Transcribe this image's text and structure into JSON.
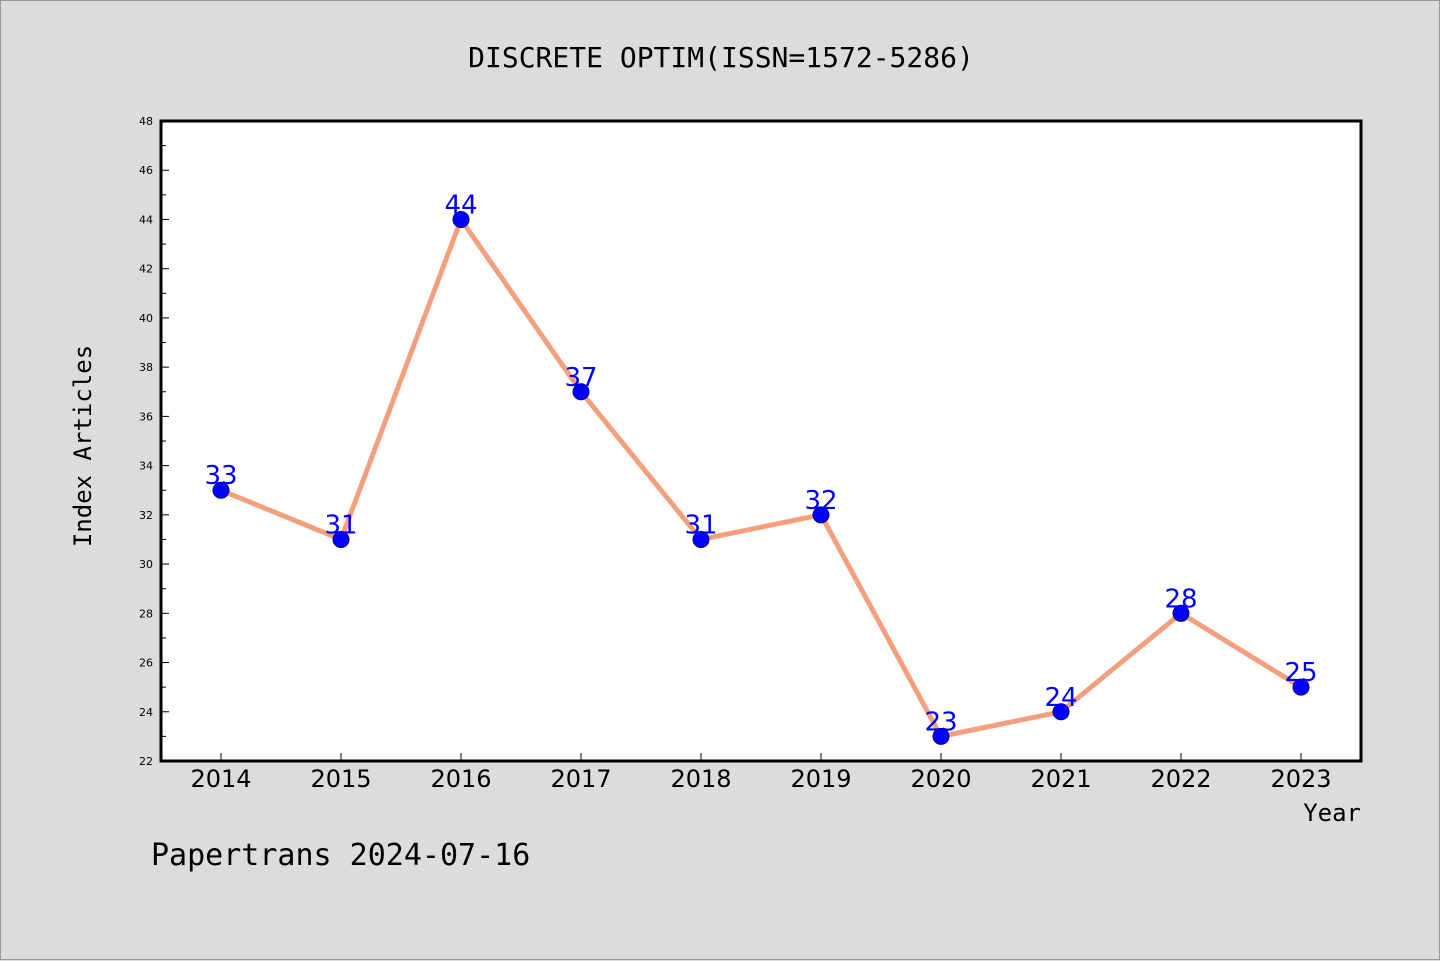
{
  "chart_data": {
    "type": "line",
    "title": "DISCRETE OPTIM(ISSN=1572-5286)",
    "xlabel": "Year",
    "ylabel": "Index Articles",
    "categories": [
      "2014",
      "2015",
      "2016",
      "2017",
      "2018",
      "2019",
      "2020",
      "2021",
      "2022",
      "2023"
    ],
    "series": [
      {
        "values": [
          33,
          31,
          44,
          37,
          31,
          32,
          23,
          24,
          28,
          25
        ]
      }
    ],
    "ylim": [
      22,
      48
    ],
    "yticks": [
      22,
      24,
      26,
      28,
      30,
      32,
      34,
      36,
      38,
      40,
      42,
      44,
      46,
      48
    ],
    "grid": false,
    "data_labels": true,
    "colors": {
      "line": "#f4a07f",
      "marker": "#0000ff",
      "label": "#0000ff",
      "plot_bg": "#ffffff",
      "page_bg": "#dcdcdc"
    }
  },
  "footer": "Papertrans 2024-07-16"
}
